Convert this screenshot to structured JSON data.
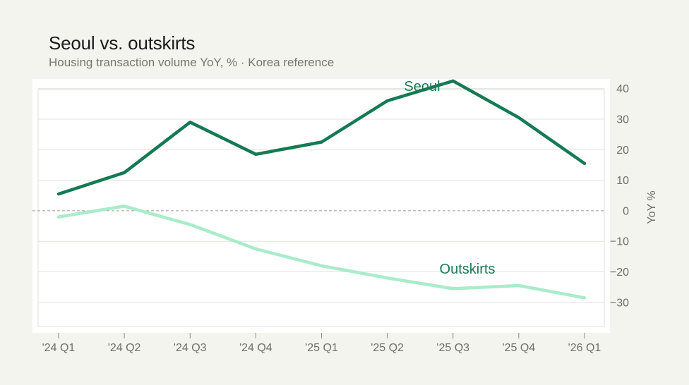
{
  "header": {
    "title": "Seoul vs. outskirts",
    "subtitle": "Housing transaction volume YoY, %  ·  Korea reference"
  },
  "colors": {
    "seoul": "#157a52",
    "outskirts": "#a9ecc9",
    "label": "#1a7a55",
    "zero_line": "#9a9a96"
  },
  "chart_data": {
    "type": "line",
    "x": [
      "'24 Q1",
      "'24 Q2",
      "'24 Q3",
      "'24 Q4",
      "'25 Q1",
      "'25 Q2",
      "'25 Q3",
      "'25 Q4",
      "'26 Q1"
    ],
    "series": [
      {
        "name": "Seoul",
        "values": [
          5.5,
          12.5,
          29,
          18.5,
          22.5,
          36,
          42.5,
          30.5,
          15.5
        ]
      },
      {
        "name": "Outskirts",
        "values": [
          -2,
          1.5,
          -4.5,
          -12.5,
          -18,
          -22,
          -25.5,
          -24.5,
          -28.5
        ]
      }
    ],
    "yticks": [
      40,
      30,
      20,
      10,
      0,
      -10,
      -20,
      -30
    ],
    "ytick_labels": [
      "40",
      "30",
      "20",
      "10",
      "0",
      "−10",
      "−20",
      "−30"
    ],
    "ylabel": "YoY %",
    "ylim": [
      -35,
      45
    ],
    "grid": true,
    "zero_line": "dashed",
    "y_axis_side": "right"
  }
}
